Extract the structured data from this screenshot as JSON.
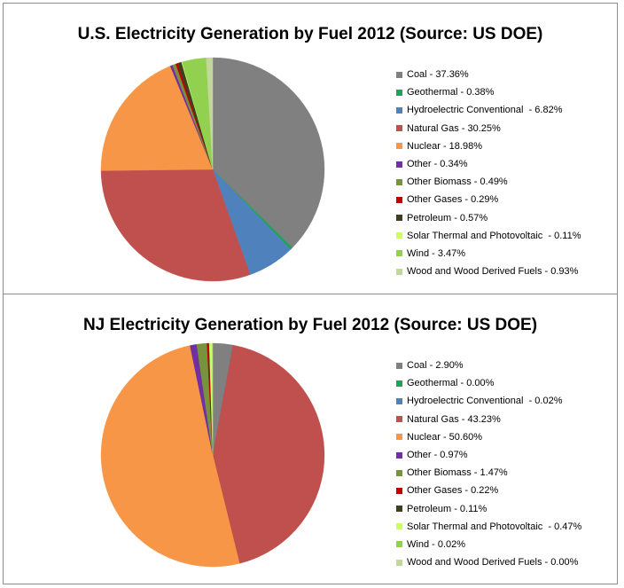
{
  "colors": {
    "Coal": "#808080",
    "Geothermal": "#1fa35c",
    "Hydroelectric Conventional": "#4f81bd",
    "Natural Gas": "#c0504d",
    "Nuclear": "#f79646",
    "Other": "#7030a0",
    "Other Biomass": "#77933c",
    "Other Gases": "#c00000",
    "Petroleum": "#3f3f1f",
    "Solar Thermal and Photovoltaic": "#ccff66",
    "Wind": "#92d050",
    "Wood and Wood Derived Fuels": "#c3d69b"
  },
  "chart_data": [
    {
      "type": "pie",
      "title": "U.S. Electricity Generation by Fuel 2012 (Source: US DOE)",
      "legend_position": "right",
      "categories": [
        "Coal",
        "Geothermal",
        "Hydroelectric Conventional",
        "Natural Gas",
        "Nuclear",
        "Other",
        "Other Biomass",
        "Other Gases",
        "Petroleum",
        "Solar Thermal and Photovoltaic",
        "Wind",
        "Wood and Wood Derived Fuels"
      ],
      "values": [
        37.36,
        0.38,
        6.82,
        30.25,
        18.98,
        0.34,
        0.49,
        0.29,
        0.57,
        0.11,
        3.47,
        0.93
      ],
      "legend_labels": [
        "Coal - 37.36%",
        "Geothermal - 0.38%",
        "Hydroelectric Conventional  - 6.82%",
        "Natural Gas - 30.25%",
        "Nuclear - 18.98%",
        "Other - 0.34%",
        "Other Biomass - 0.49%",
        "Other Gases - 0.29%",
        "Petroleum - 0.57%",
        "Solar Thermal and Photovoltaic  - 0.11%",
        "Wind - 3.47%",
        "Wood and Wood Derived Fuels - 0.93%"
      ]
    },
    {
      "type": "pie",
      "title": "NJ Electricity Generation by Fuel 2012 (Source: US DOE)",
      "legend_position": "right",
      "categories": [
        "Coal",
        "Geothermal",
        "Hydroelectric Conventional",
        "Natural Gas",
        "Nuclear",
        "Other",
        "Other Biomass",
        "Other Gases",
        "Petroleum",
        "Solar Thermal and Photovoltaic",
        "Wind",
        "Wood and Wood Derived Fuels"
      ],
      "values": [
        2.9,
        0.0,
        0.02,
        43.23,
        50.6,
        0.97,
        1.47,
        0.22,
        0.11,
        0.47,
        0.02,
        0.0
      ],
      "legend_labels": [
        "Coal - 2.90%",
        "Geothermal - 0.00%",
        "Hydroelectric Conventional  - 0.02%",
        "Natural Gas - 43.23%",
        "Nuclear - 50.60%",
        "Other - 0.97%",
        "Other Biomass - 1.47%",
        "Other Gases - 0.22%",
        "Petroleum - 0.11%",
        "Solar Thermal and Photovoltaic  - 0.47%",
        "Wind - 0.02%",
        "Wood and Wood Derived Fuels - 0.00%"
      ]
    }
  ]
}
